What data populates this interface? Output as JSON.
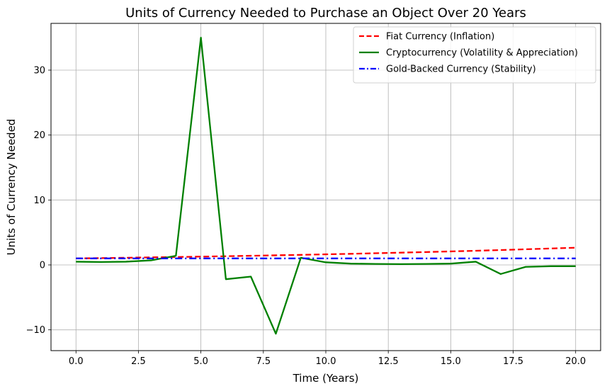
{
  "chart_data": {
    "type": "line",
    "title": "Units of Currency Needed to Purchase an Object Over 20 Years",
    "xlabel": "Time (Years)",
    "ylabel": "Units of Currency Needed",
    "xlim": [
      -1,
      21
    ],
    "ylim": [
      -13.2,
      37.2
    ],
    "xticks": [
      0,
      2.5,
      5,
      7.5,
      10,
      12.5,
      15,
      17.5,
      20
    ],
    "xtick_labels": [
      "0.0",
      "2.5",
      "5.0",
      "7.5",
      "10.0",
      "12.5",
      "15.0",
      "17.5",
      "20.0"
    ],
    "yticks": [
      -10,
      0,
      10,
      20,
      30
    ],
    "ytick_labels": [
      "−10",
      "0",
      "10",
      "20",
      "30"
    ],
    "grid": true,
    "legend_position": "top-right",
    "x": [
      0,
      1,
      2,
      3,
      4,
      5,
      6,
      7,
      8,
      9,
      10,
      11,
      12,
      13,
      14,
      15,
      16,
      17,
      18,
      19,
      20
    ],
    "series": [
      {
        "name": "Fiat Currency (Inflation)",
        "color": "#ff0000",
        "style": "dashed",
        "values": [
          1.0,
          1.05,
          1.1,
          1.16,
          1.22,
          1.28,
          1.34,
          1.41,
          1.48,
          1.55,
          1.63,
          1.71,
          1.8,
          1.89,
          1.98,
          2.08,
          2.18,
          2.29,
          2.41,
          2.53,
          2.65
        ]
      },
      {
        "name": "Cryptocurrency (Volatility & Appreciation)",
        "color": "#008000",
        "style": "solid",
        "values": [
          0.5,
          0.45,
          0.5,
          0.7,
          1.4,
          35.0,
          -2.2,
          -1.8,
          -10.6,
          1.1,
          0.4,
          0.2,
          0.15,
          0.12,
          0.15,
          0.2,
          0.5,
          -1.4,
          -0.3,
          -0.2,
          -0.2
        ]
      },
      {
        "name": "Gold-Backed Currency (Stability)",
        "color": "#0000ff",
        "style": "dashdot",
        "values": [
          1.0,
          1.0,
          1.0,
          1.0,
          1.0,
          1.0,
          1.0,
          1.0,
          1.0,
          1.0,
          1.0,
          1.0,
          1.0,
          1.0,
          1.0,
          1.0,
          1.0,
          1.0,
          1.0,
          1.0,
          1.0
        ]
      }
    ]
  }
}
